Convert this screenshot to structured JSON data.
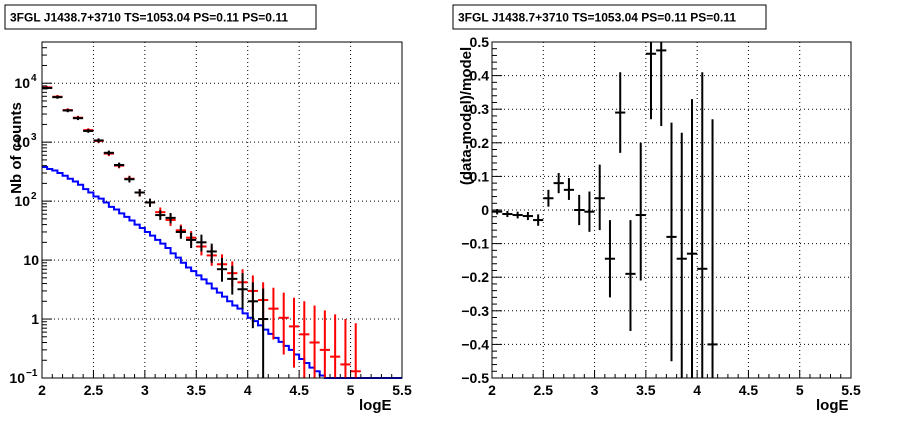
{
  "chart_data": [
    {
      "type": "scatter",
      "title": "3FGL J1438.7+3710 TS=1053.04 PS=0.11 PS=0.11",
      "xlabel": "logE",
      "ylabel": "Nb of counts",
      "xlim": [
        2,
        5.5
      ],
      "ylim": [
        0.1,
        50000
      ],
      "yscale": "log",
      "grid": true,
      "x_ticks": [
        "2",
        "2.5",
        "3",
        "3.5",
        "4",
        "4.5",
        "5",
        "5.5"
      ],
      "y_ticks": [
        {
          "value": 0.1,
          "mantissa": "10",
          "exp": "−1"
        },
        {
          "value": 1,
          "mantissa": "1",
          "exp": ""
        },
        {
          "value": 10,
          "mantissa": "10",
          "exp": ""
        },
        {
          "value": 100,
          "mantissa": "10",
          "exp": "2"
        },
        {
          "value": 1000,
          "mantissa": "10",
          "exp": "3"
        },
        {
          "value": 10000,
          "mantissa": "10",
          "exp": "4"
        }
      ],
      "series": [
        {
          "color": "#0000ff",
          "kind": "histogram",
          "edges": [
            2.0,
            2.05,
            2.1,
            2.15,
            2.2,
            2.25,
            2.3,
            2.35,
            2.4,
            2.45,
            2.5,
            2.55,
            2.6,
            2.65,
            2.7,
            2.75,
            2.8,
            2.85,
            2.9,
            2.95,
            3.0,
            3.05,
            3.1,
            3.15,
            3.2,
            3.25,
            3.3,
            3.35,
            3.4,
            3.45,
            3.5,
            3.55,
            3.6,
            3.65,
            3.7,
            3.75,
            3.8,
            3.85,
            3.9,
            3.95,
            4.0,
            4.05,
            4.1,
            4.15,
            4.2,
            4.25,
            4.3,
            4.35,
            4.4,
            4.45,
            4.5,
            4.55,
            4.6,
            4.65,
            4.7,
            4.75,
            4.8,
            4.85,
            4.9,
            4.95,
            5.0,
            5.05,
            5.1,
            5.15,
            5.2,
            5.25,
            5.3,
            5.35,
            5.4,
            5.45,
            5.5
          ],
          "values": [
            380,
            350,
            330,
            300,
            270,
            240,
            215,
            190,
            160,
            140,
            120,
            110,
            95,
            80,
            72,
            62,
            54,
            47,
            40,
            35,
            30,
            26,
            22,
            19,
            16,
            13,
            11,
            9,
            7.5,
            6.5,
            5.5,
            4.7,
            4,
            3.3,
            2.8,
            2.4,
            2.0,
            1.7,
            1.5,
            1.25,
            1.05,
            0.92,
            0.78,
            0.66,
            0.56,
            0.48,
            0.41,
            0.35,
            0.3,
            0.25,
            0.21,
            0.18,
            0.15,
            0.13,
            0.11,
            0.1,
            0.1,
            0.1,
            0.1,
            0.1,
            0.1,
            0.1,
            0.1,
            0.1,
            0.1,
            0.1,
            0.1,
            0.1,
            0.1,
            0.1
          ]
        },
        {
          "color": "#ff0000",
          "kind": "points",
          "points": [
            {
              "x": 2.05,
              "y": 8500,
              "lo": 8000,
              "hi": 9000
            },
            {
              "x": 2.15,
              "y": 5900,
              "lo": 5500,
              "hi": 6300
            },
            {
              "x": 2.25,
              "y": 3500,
              "lo": 3250,
              "hi": 3750
            },
            {
              "x": 2.35,
              "y": 2600,
              "lo": 2400,
              "hi": 2800
            },
            {
              "x": 2.45,
              "y": 1600,
              "lo": 1480,
              "hi": 1720
            },
            {
              "x": 2.55,
              "y": 1050,
              "lo": 960,
              "hi": 1140
            },
            {
              "x": 2.65,
              "y": 640,
              "lo": 580,
              "hi": 700
            },
            {
              "x": 2.75,
              "y": 400,
              "lo": 360,
              "hi": 440
            },
            {
              "x": 2.85,
              "y": 240,
              "lo": 210,
              "hi": 270
            },
            {
              "x": 2.95,
              "y": 140,
              "lo": 120,
              "hi": 160
            },
            {
              "x": 3.05,
              "y": 95,
              "lo": 80,
              "hi": 110
            },
            {
              "x": 3.15,
              "y": 65,
              "lo": 54,
              "hi": 78
            },
            {
              "x": 3.25,
              "y": 48,
              "lo": 38,
              "hi": 60
            },
            {
              "x": 3.35,
              "y": 32,
              "lo": 25,
              "hi": 40
            },
            {
              "x": 3.45,
              "y": 24,
              "lo": 18,
              "hi": 31
            },
            {
              "x": 3.55,
              "y": 17,
              "lo": 12,
              "hi": 23
            },
            {
              "x": 3.65,
              "y": 12,
              "lo": 8,
              "hi": 17
            },
            {
              "x": 3.75,
              "y": 8.5,
              "lo": 5.5,
              "hi": 12.5
            },
            {
              "x": 3.85,
              "y": 6,
              "lo": 3.5,
              "hi": 9.5
            },
            {
              "x": 3.95,
              "y": 4.2,
              "lo": 2.2,
              "hi": 7
            },
            {
              "x": 4.05,
              "y": 3,
              "lo": 1.4,
              "hi": 5.5
            },
            {
              "x": 4.15,
              "y": 2.1,
              "lo": 0.8,
              "hi": 4.2
            },
            {
              "x": 4.25,
              "y": 1.5,
              "lo": 0.45,
              "hi": 3.4
            },
            {
              "x": 4.35,
              "y": 1.05,
              "lo": 0.25,
              "hi": 2.8
            },
            {
              "x": 4.45,
              "y": 0.75,
              "lo": 0.15,
              "hi": 2.3
            },
            {
              "x": 4.55,
              "y": 0.55,
              "lo": 0.1,
              "hi": 2.0
            },
            {
              "x": 4.65,
              "y": 0.4,
              "lo": 0.1,
              "hi": 1.7
            },
            {
              "x": 4.75,
              "y": 0.3,
              "lo": 0.1,
              "hi": 1.4
            },
            {
              "x": 4.85,
              "y": 0.23,
              "lo": 0.1,
              "hi": 1.2
            },
            {
              "x": 4.95,
              "y": 0.17,
              "lo": 0.1,
              "hi": 1.0
            },
            {
              "x": 5.05,
              "y": 0.13,
              "lo": 0.1,
              "hi": 0.85
            }
          ]
        },
        {
          "color": "#000000",
          "kind": "points",
          "points": [
            {
              "x": 2.05,
              "y": 8300,
              "lo": 7900,
              "hi": 8700
            },
            {
              "x": 2.15,
              "y": 5800,
              "lo": 5450,
              "hi": 6150
            },
            {
              "x": 2.25,
              "y": 3450,
              "lo": 3220,
              "hi": 3680
            },
            {
              "x": 2.35,
              "y": 2550,
              "lo": 2370,
              "hi": 2730
            },
            {
              "x": 2.45,
              "y": 1550,
              "lo": 1440,
              "hi": 1660
            },
            {
              "x": 2.55,
              "y": 1070,
              "lo": 980,
              "hi": 1160
            },
            {
              "x": 2.65,
              "y": 660,
              "lo": 600,
              "hi": 720
            },
            {
              "x": 2.75,
              "y": 410,
              "lo": 370,
              "hi": 450
            },
            {
              "x": 2.85,
              "y": 235,
              "lo": 207,
              "hi": 265
            },
            {
              "x": 2.95,
              "y": 140,
              "lo": 120,
              "hi": 160
            },
            {
              "x": 3.05,
              "y": 95,
              "lo": 80,
              "hi": 110
            },
            {
              "x": 3.15,
              "y": 58,
              "lo": 48,
              "hi": 70
            },
            {
              "x": 3.25,
              "y": 52,
              "lo": 42,
              "hi": 63
            },
            {
              "x": 3.35,
              "y": 30,
              "lo": 23,
              "hi": 38
            },
            {
              "x": 3.45,
              "y": 22,
              "lo": 16,
              "hi": 29
            },
            {
              "x": 3.55,
              "y": 20,
              "lo": 14,
              "hi": 27
            },
            {
              "x": 3.65,
              "y": 14,
              "lo": 9,
              "hi": 19
            },
            {
              "x": 3.75,
              "y": 7,
              "lo": 4.3,
              "hi": 10.8
            },
            {
              "x": 3.85,
              "y": 4.8,
              "lo": 2.6,
              "hi": 8
            },
            {
              "x": 3.95,
              "y": 3.2,
              "lo": 1.5,
              "hi": 6
            },
            {
              "x": 4.05,
              "y": 2.0,
              "lo": 0.7,
              "hi": 4.2
            },
            {
              "x": 4.15,
              "y": 1.0,
              "lo": 0.1,
              "hi": 3.3
            }
          ]
        }
      ]
    },
    {
      "type": "scatter",
      "title": "3FGL J1438.7+3710 TS=1053.04 PS=0.11 PS=0.11",
      "xlabel": "logE",
      "ylabel": "(data-model)/model",
      "xlim": [
        2,
        5.5
      ],
      "ylim": [
        -0.5,
        0.5
      ],
      "grid": true,
      "x_ticks": [
        "2",
        "2.5",
        "3",
        "3.5",
        "4",
        "4.5",
        "5",
        "5.5"
      ],
      "y_ticks": [
        "−0.5",
        "−0.4",
        "−0.3",
        "−0.2",
        "−0.1",
        "0",
        "0.1",
        "0.2",
        "0.3",
        "0.4",
        "0.5"
      ],
      "series": [
        {
          "color": "#000000",
          "points": [
            {
              "x": 2.05,
              "y": -0.005,
              "lo": -0.013,
              "hi": 0.003
            },
            {
              "x": 2.15,
              "y": -0.012,
              "lo": -0.021,
              "hi": -0.003
            },
            {
              "x": 2.25,
              "y": -0.015,
              "lo": -0.025,
              "hi": -0.005
            },
            {
              "x": 2.35,
              "y": -0.018,
              "lo": -0.03,
              "hi": -0.006
            },
            {
              "x": 2.45,
              "y": -0.03,
              "lo": -0.047,
              "hi": -0.013
            },
            {
              "x": 2.55,
              "y": 0.035,
              "lo": 0.01,
              "hi": 0.06
            },
            {
              "x": 2.65,
              "y": 0.08,
              "lo": 0.05,
              "hi": 0.11
            },
            {
              "x": 2.75,
              "y": 0.06,
              "lo": 0.03,
              "hi": 0.095
            },
            {
              "x": 2.85,
              "y": 0.0,
              "lo": -0.045,
              "hi": 0.045
            },
            {
              "x": 2.95,
              "y": -0.005,
              "lo": -0.065,
              "hi": 0.055
            },
            {
              "x": 3.05,
              "y": 0.035,
              "lo": -0.06,
              "hi": 0.135
            },
            {
              "x": 3.15,
              "y": -0.145,
              "lo": -0.26,
              "hi": -0.03
            },
            {
              "x": 3.25,
              "y": 0.29,
              "lo": 0.17,
              "hi": 0.41
            },
            {
              "x": 3.35,
              "y": -0.19,
              "lo": -0.36,
              "hi": -0.03
            },
            {
              "x": 3.45,
              "y": -0.015,
              "lo": -0.21,
              "hi": 0.2
            },
            {
              "x": 3.55,
              "y": 0.465,
              "lo": 0.27,
              "hi": 0.5
            },
            {
              "x": 3.65,
              "y": 0.475,
              "lo": 0.25,
              "hi": 0.5
            },
            {
              "x": 3.75,
              "y": -0.08,
              "lo": -0.45,
              "hi": 0.26
            },
            {
              "x": 3.85,
              "y": -0.145,
              "lo": -0.5,
              "hi": 0.23
            },
            {
              "x": 3.95,
              "y": -0.13,
              "lo": -0.5,
              "hi": 0.33
            },
            {
              "x": 4.05,
              "y": -0.175,
              "lo": -0.5,
              "hi": 0.41
            },
            {
              "x": 4.15,
              "y": -0.4,
              "lo": -0.5,
              "hi": 0.27
            }
          ]
        }
      ]
    }
  ]
}
